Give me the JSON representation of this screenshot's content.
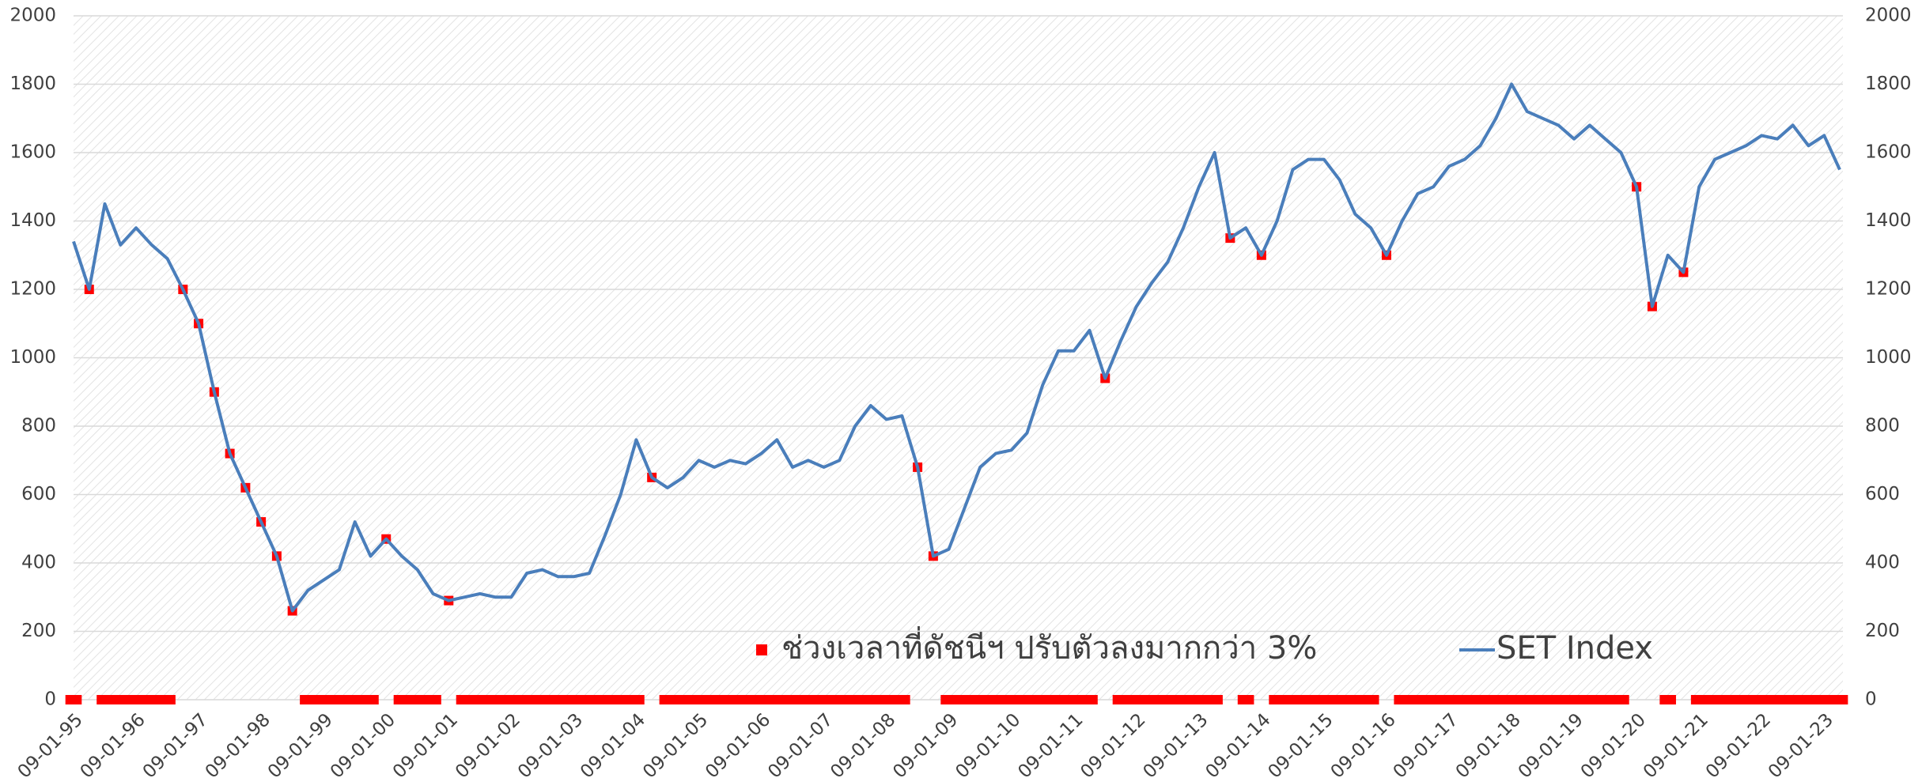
{
  "chart_data": {
    "type": "line",
    "x": [
      1995,
      1995.25,
      1995.5,
      1995.75,
      1996,
      1996.25,
      1996.5,
      1996.75,
      1997,
      1997.25,
      1997.5,
      1997.75,
      1998,
      1998.25,
      1998.5,
      1998.75,
      1999,
      1999.25,
      1999.5,
      1999.75,
      2000,
      2000.25,
      2000.5,
      2000.75,
      2001,
      2001.25,
      2001.5,
      2001.75,
      2002,
      2002.25,
      2002.5,
      2002.75,
      2003,
      2003.25,
      2003.5,
      2003.75,
      2004,
      2004.25,
      2004.5,
      2004.75,
      2005,
      2005.25,
      2005.5,
      2005.75,
      2006,
      2006.25,
      2006.5,
      2006.75,
      2007,
      2007.25,
      2007.5,
      2007.75,
      2008,
      2008.25,
      2008.5,
      2008.75,
      2009,
      2009.25,
      2009.5,
      2009.75,
      2010,
      2010.25,
      2010.5,
      2010.75,
      2011,
      2011.25,
      2011.5,
      2011.75,
      2012,
      2012.25,
      2012.5,
      2012.75,
      2013,
      2013.25,
      2013.5,
      2013.75,
      2014,
      2014.25,
      2014.5,
      2014.75,
      2015,
      2015.25,
      2015.5,
      2015.75,
      2016,
      2016.25,
      2016.5,
      2016.75,
      2017,
      2017.25,
      2017.5,
      2017.75,
      2018,
      2018.25,
      2018.5,
      2018.75,
      2019,
      2019.25,
      2019.5,
      2019.75,
      2020,
      2020.25,
      2020.5,
      2020.75,
      2021,
      2021.25,
      2021.5,
      2021.75,
      2022,
      2022.25,
      2022.5,
      2022.75,
      2023,
      2023.25
    ],
    "series": [
      {
        "name": "ช่วงเวลาที่ดัชนีฯ ปรับตัวลงมากกว่า 3%",
        "color": "#ff0000",
        "marker": "square",
        "values": [
          0,
          1200,
          0,
          0,
          0,
          0,
          0,
          1200,
          1100,
          900,
          720,
          620,
          520,
          420,
          260,
          0,
          0,
          0,
          0,
          0,
          470,
          0,
          0,
          0,
          290,
          0,
          0,
          0,
          0,
          0,
          0,
          0,
          0,
          0,
          0,
          0,
          0,
          650,
          0,
          0,
          0,
          0,
          0,
          0,
          0,
          0,
          0,
          0,
          0,
          0,
          0,
          0,
          0,
          0,
          680,
          420,
          0,
          0,
          0,
          0,
          0,
          0,
          0,
          0,
          0,
          0,
          940,
          0,
          0,
          0,
          0,
          0,
          0,
          0,
          1350,
          0,
          1300,
          0,
          0,
          0,
          0,
          0,
          0,
          0,
          1300,
          0,
          0,
          0,
          0,
          0,
          0,
          0,
          0,
          0,
          0,
          0,
          0,
          0,
          0,
          0,
          1500,
          1150,
          0,
          1250,
          0,
          0,
          0,
          0,
          0,
          0,
          0,
          0,
          0,
          0
        ]
      },
      {
        "name": "SET Index",
        "color": "#4a7ebb",
        "marker": "line",
        "values": [
          1340,
          1200,
          1450,
          1330,
          1380,
          1330,
          1290,
          1200,
          1100,
          900,
          720,
          620,
          520,
          420,
          260,
          320,
          350,
          380,
          520,
          420,
          470,
          420,
          380,
          310,
          290,
          300,
          310,
          300,
          300,
          370,
          380,
          360,
          360,
          370,
          480,
          600,
          760,
          650,
          620,
          650,
          700,
          680,
          700,
          690,
          720,
          760,
          680,
          700,
          680,
          700,
          800,
          860,
          820,
          830,
          680,
          420,
          440,
          560,
          680,
          720,
          730,
          780,
          920,
          1020,
          1020,
          1080,
          940,
          1050,
          1150,
          1220,
          1280,
          1380,
          1500,
          1600,
          1350,
          1380,
          1300,
          1400,
          1550,
          1580,
          1580,
          1520,
          1420,
          1380,
          1300,
          1400,
          1480,
          1500,
          1560,
          1580,
          1620,
          1700,
          1800,
          1720,
          1700,
          1680,
          1640,
          1680,
          1640,
          1600,
          1500,
          1150,
          1300,
          1250,
          1500,
          1580,
          1600,
          1620,
          1650,
          1640,
          1680,
          1620,
          1650,
          1550
        ]
      }
    ],
    "xlim": [
      1995,
      2023.3
    ],
    "xticks": [
      {
        "value": 1995,
        "label": "09-01-95"
      },
      {
        "value": 1996,
        "label": "09-01-96"
      },
      {
        "value": 1997,
        "label": "09-01-97"
      },
      {
        "value": 1998,
        "label": "09-01-98"
      },
      {
        "value": 1999,
        "label": "09-01-99"
      },
      {
        "value": 2000,
        "label": "09-01-00"
      },
      {
        "value": 2001,
        "label": "09-01-01"
      },
      {
        "value": 2002,
        "label": "09-01-02"
      },
      {
        "value": 2003,
        "label": "09-01-03"
      },
      {
        "value": 2004,
        "label": "09-01-04"
      },
      {
        "value": 2005,
        "label": "09-01-05"
      },
      {
        "value": 2006,
        "label": "09-01-06"
      },
      {
        "value": 2007,
        "label": "09-01-07"
      },
      {
        "value": 2008,
        "label": "09-01-08"
      },
      {
        "value": 2009,
        "label": "09-01-09"
      },
      {
        "value": 2010,
        "label": "09-01-10"
      },
      {
        "value": 2011,
        "label": "09-01-11"
      },
      {
        "value": 2012,
        "label": "09-01-12"
      },
      {
        "value": 2013,
        "label": "09-01-13"
      },
      {
        "value": 2014,
        "label": "09-01-14"
      },
      {
        "value": 2015,
        "label": "09-01-15"
      },
      {
        "value": 2016,
        "label": "09-01-16"
      },
      {
        "value": 2017,
        "label": "09-01-17"
      },
      {
        "value": 2018,
        "label": "09-01-18"
      },
      {
        "value": 2019,
        "label": "09-01-19"
      },
      {
        "value": 2020,
        "label": "09-01-20"
      },
      {
        "value": 2021,
        "label": "09-01-21"
      },
      {
        "value": 2022,
        "label": "09-01-22"
      },
      {
        "value": 2023,
        "label": "09-01-23"
      }
    ],
    "ylim": [
      0,
      2000
    ],
    "yticks": [
      0,
      200,
      400,
      600,
      800,
      1000,
      1200,
      1400,
      1600,
      1800,
      2000
    ],
    "y2lim": [
      0,
      2000
    ],
    "y2ticks": [
      0,
      200,
      400,
      600,
      800,
      1000,
      1200,
      1400,
      1600,
      1800,
      2000
    ],
    "grid": true,
    "legend": "bottom"
  }
}
